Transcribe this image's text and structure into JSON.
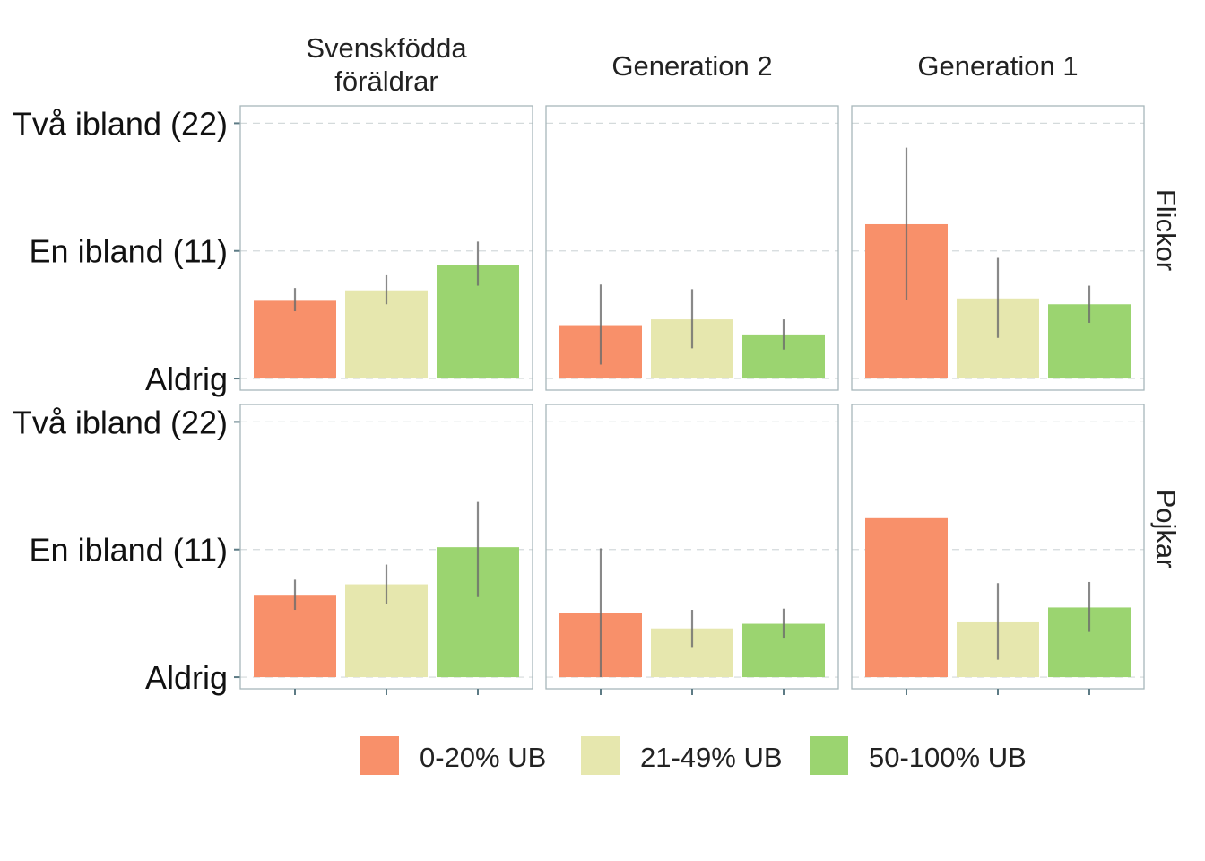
{
  "chart_data": {
    "type": "bar",
    "title": "",
    "xlabel": "",
    "ylabel": "",
    "ylim": [
      -1,
      23.5
    ],
    "y_ticks": [
      {
        "value": 0,
        "label": "Aldrig"
      },
      {
        "value": 11,
        "label": "En ibland (11)"
      },
      {
        "value": 22,
        "label": "Två ibland (22)"
      }
    ],
    "columns": [
      "Svenskfödda föräldrar",
      "Generation 2",
      "Generation 1"
    ],
    "rows": [
      "Flickor",
      "Pojkar"
    ],
    "categories": [
      "0-20% UB",
      "21-49% UB",
      "50-100% UB"
    ],
    "colors": [
      "#F8906A",
      "#E6E7AE",
      "#9BD470"
    ],
    "legend": {
      "position": "bottom",
      "entries": [
        "0-20% UB",
        "21-49% UB",
        "50-100% UB"
      ]
    },
    "grid": true,
    "panels": [
      {
        "row": "Flickor",
        "column": "Svenskfödda föräldrar",
        "values": [
          6.7,
          7.6,
          9.8
        ],
        "error_low": [
          5.8,
          6.4,
          8.0
        ],
        "error_high": [
          7.8,
          8.9,
          11.8
        ]
      },
      {
        "row": "Flickor",
        "column": "Generation 2",
        "values": [
          4.6,
          5.1,
          3.8
        ],
        "error_low": [
          1.2,
          2.6,
          2.5
        ],
        "error_high": [
          8.1,
          7.7,
          5.1
        ]
      },
      {
        "row": "Flickor",
        "column": "Generation 1",
        "values": [
          13.3,
          6.9,
          6.4
        ],
        "error_low": [
          6.8,
          3.5,
          4.8
        ],
        "error_high": [
          19.9,
          10.4,
          8.0
        ]
      },
      {
        "row": "Pojkar",
        "column": "Svenskfödda föräldrar",
        "values": [
          7.1,
          8.0,
          11.2
        ],
        "error_low": [
          5.8,
          6.3,
          6.9
        ],
        "error_high": [
          8.4,
          9.7,
          15.1
        ]
      },
      {
        "row": "Pojkar",
        "column": "Generation 2",
        "values": [
          5.5,
          4.2,
          4.6
        ],
        "error_low": [
          0.0,
          2.6,
          3.4
        ],
        "error_high": [
          11.1,
          5.8,
          5.9
        ]
      },
      {
        "row": "Pojkar",
        "column": "Generation 1",
        "values": [
          13.7,
          4.8,
          6.0
        ],
        "error_low": null,
        "error_high": null
      },
      {
        "row": "Pojkar",
        "column": "Generation 1",
        "values": null,
        "error_low": [
          null,
          1.5,
          3.9
        ],
        "error_high": [
          null,
          8.1,
          8.2
        ]
      }
    ]
  }
}
